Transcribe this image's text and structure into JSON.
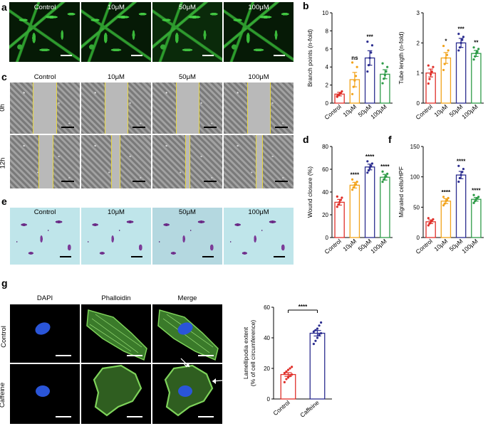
{
  "panels": {
    "a": "a",
    "b": "b",
    "c": "c",
    "d": "d",
    "e": "e",
    "f": "f",
    "g": "g"
  },
  "conditions": [
    "Control",
    "10μM",
    "50μM",
    "100μM"
  ],
  "wound_rows": [
    "0h",
    "12h"
  ],
  "g_columns": [
    "DAPI",
    "Phalloidin",
    "Merge"
  ],
  "g_rows": [
    "Control",
    "Caffeine"
  ],
  "colors": {
    "control": "#e0302a",
    "c10": "#f2a31b",
    "c50": "#2b2d8f",
    "c100": "#2e9b48"
  },
  "chart_data": [
    {
      "type": "bar",
      "panel": "b-left",
      "categories": [
        "Control",
        "10μM",
        "50μM",
        "100μM"
      ],
      "values": [
        1.0,
        2.6,
        5.0,
        3.2
      ],
      "errors": [
        0.2,
        0.8,
        0.8,
        0.5
      ],
      "significance": [
        "",
        "ns",
        "***",
        ""
      ],
      "ylabel": "Branch points (n-fold)",
      "ylim": [
        0,
        10
      ],
      "yticks": [
        0,
        2,
        4,
        6,
        8,
        10
      ],
      "points": [
        [
          0.7,
          0.9,
          1.0,
          1.1,
          1.3,
          0.8
        ],
        [
          1.0,
          1.8,
          2.5,
          3.0,
          4.0,
          4.5
        ],
        [
          3.5,
          4.2,
          5.0,
          5.6,
          6.4,
          6.8
        ],
        [
          2.2,
          2.7,
          3.1,
          3.5,
          4.0,
          4.4
        ]
      ]
    },
    {
      "type": "bar",
      "panel": "b-right",
      "categories": [
        "Control",
        "10μM",
        "50μM",
        "100μM"
      ],
      "values": [
        1.0,
        1.5,
        2.0,
        1.65
      ],
      "errors": [
        0.13,
        0.18,
        0.15,
        0.1
      ],
      "significance": [
        "",
        "*",
        "***",
        "**"
      ],
      "ylabel": "Tube length (n-fold)",
      "ylim": [
        0,
        3
      ],
      "yticks": [
        0,
        1,
        2,
        3
      ],
      "points": [
        [
          0.65,
          0.8,
          0.95,
          1.05,
          1.2,
          1.25
        ],
        [
          1.1,
          1.3,
          1.5,
          1.6,
          1.75,
          1.9
        ],
        [
          1.75,
          1.85,
          2.0,
          2.1,
          2.2,
          2.3
        ],
        [
          1.45,
          1.55,
          1.65,
          1.7,
          1.8,
          1.85
        ]
      ]
    },
    {
      "type": "bar",
      "panel": "d",
      "categories": [
        "Control",
        "10μM",
        "50μM",
        "100μM"
      ],
      "values": [
        31,
        46,
        62,
        53
      ],
      "errors": [
        2.5,
        2.5,
        2.5,
        2.5
      ],
      "significance": [
        "",
        "****",
        "****",
        "****"
      ],
      "ylabel": "Wound closure (%)",
      "ylim": [
        0,
        80
      ],
      "yticks": [
        0,
        20,
        40,
        60,
        80
      ],
      "points": [
        [
          27,
          29,
          31,
          33,
          35,
          36
        ],
        [
          42,
          44,
          46,
          47,
          49,
          51
        ],
        [
          57,
          59,
          61,
          63,
          65,
          67
        ],
        [
          49,
          51,
          53,
          54,
          56,
          58
        ]
      ]
    },
    {
      "type": "bar",
      "panel": "f",
      "categories": [
        "Control",
        "10μM",
        "50μM",
        "100μM"
      ],
      "values": [
        26,
        60,
        103,
        63
      ],
      "errors": [
        3,
        4,
        6,
        3
      ],
      "significance": [
        "",
        "****",
        "****",
        "****"
      ],
      "ylabel": "Migrated cells/HPF",
      "ylim": [
        0,
        150
      ],
      "yticks": [
        0,
        50,
        100,
        150
      ],
      "points": [
        [
          20,
          23,
          26,
          28,
          30,
          32
        ],
        [
          53,
          56,
          60,
          62,
          65,
          67
        ],
        [
          92,
          98,
          103,
          108,
          113,
          118
        ],
        [
          57,
          60,
          63,
          65,
          67,
          70
        ]
      ]
    },
    {
      "type": "bar",
      "panel": "g",
      "categories": [
        "Control",
        "Caffeine"
      ],
      "values": [
        16,
        43
      ],
      "errors": [
        1.2,
        1.8
      ],
      "significance_bracket": "****",
      "ylabel": "Lamellipodia extent\n(% of cell circumference)",
      "ylim": [
        0,
        60
      ],
      "yticks": [
        0,
        20,
        40,
        60
      ],
      "points": [
        [
          11,
          13,
          14,
          15,
          16,
          17,
          18,
          19,
          20,
          21
        ],
        [
          36,
          38,
          40,
          42,
          43,
          44,
          45,
          46,
          48,
          50
        ]
      ]
    }
  ]
}
